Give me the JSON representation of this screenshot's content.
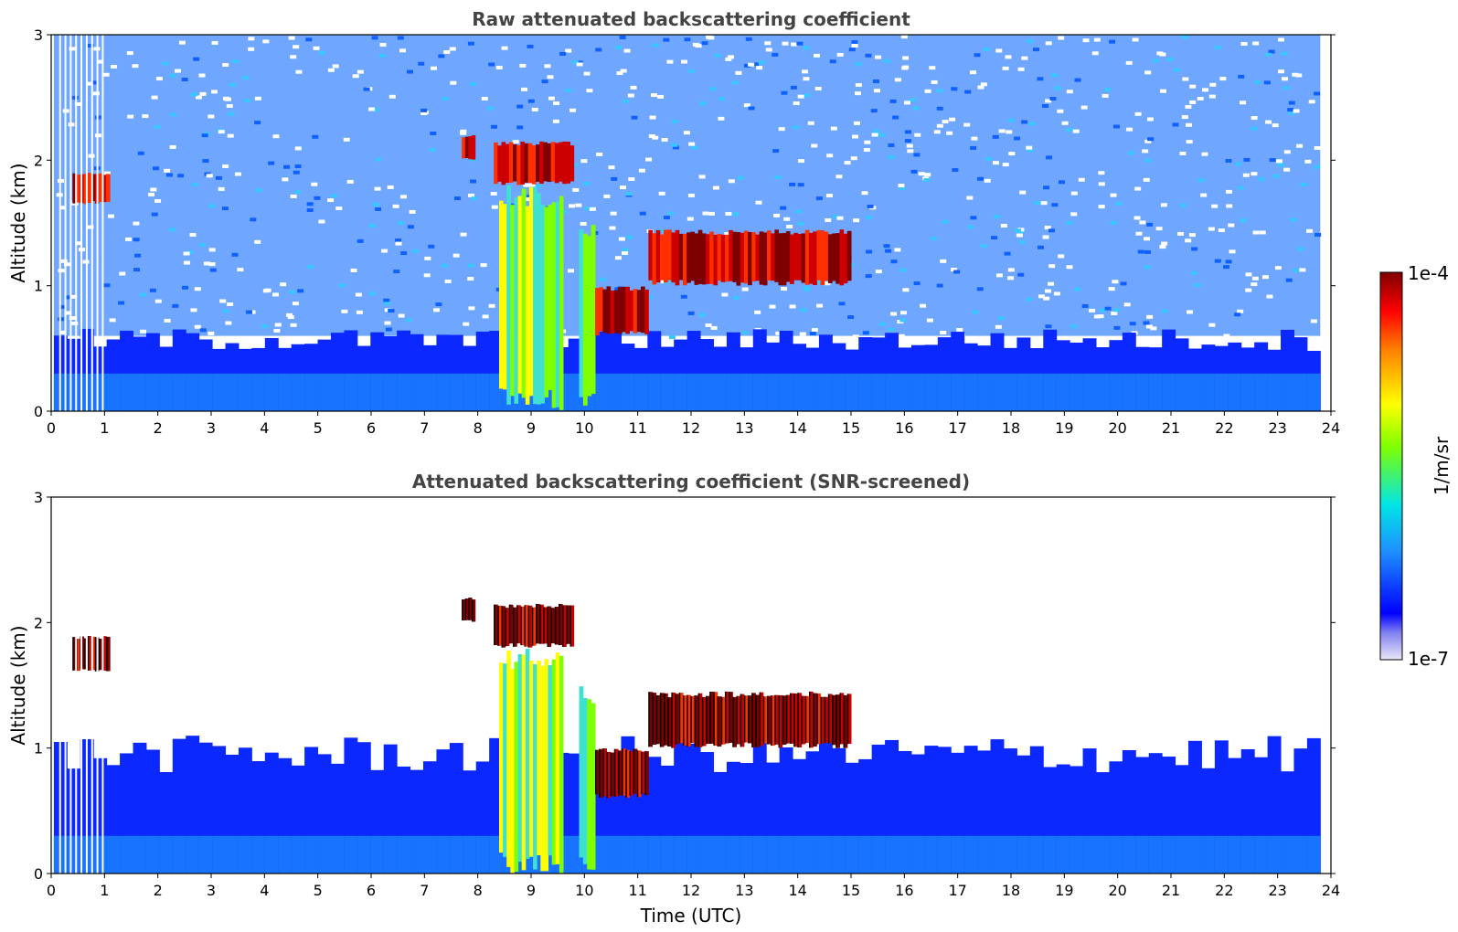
{
  "chart_data": [
    {
      "type": "heatmap",
      "title": "Raw attenuated backscattering coefficient",
      "xlabel": "",
      "ylabel": "Altitude (km)",
      "xlim": [
        0,
        24
      ],
      "ylim": [
        0,
        3
      ],
      "x_ticks": [
        "0",
        "1",
        "2",
        "3",
        "4",
        "5",
        "6",
        "7",
        "8",
        "9",
        "10",
        "11",
        "12",
        "13",
        "14",
        "15",
        "16",
        "17",
        "18",
        "19",
        "20",
        "21",
        "22",
        "23",
        "24"
      ],
      "y_ticks": [
        "0",
        "1",
        "2",
        "3"
      ],
      "data_end_time": 23.8,
      "features": [
        {
          "kind": "boundary_layer",
          "t_start": 0.1,
          "t_end": 23.8,
          "top_km": 0.6
        },
        {
          "kind": "cloud",
          "t_start": 0.4,
          "t_end": 1.1,
          "alt_km": [
            1.65,
            1.9
          ]
        },
        {
          "kind": "cloud",
          "t_start": 7.7,
          "t_end": 7.95,
          "alt_km": [
            2.0,
            2.2
          ]
        },
        {
          "kind": "cloud",
          "t_start": 8.3,
          "t_end": 9.8,
          "alt_km": [
            1.8,
            2.15
          ]
        },
        {
          "kind": "precipitation",
          "t_start": 8.4,
          "t_end": 9.6,
          "alt_km": [
            0,
            1.8
          ]
        },
        {
          "kind": "precipitation",
          "t_start": 9.9,
          "t_end": 10.2,
          "alt_km": [
            0,
            1.5
          ]
        },
        {
          "kind": "cloud",
          "t_start": 10.2,
          "t_end": 11.2,
          "alt_km": [
            0.6,
            1.0
          ]
        },
        {
          "kind": "cloud",
          "t_start": 11.2,
          "t_end": 15.0,
          "alt_km": [
            1.0,
            1.45
          ]
        }
      ]
    },
    {
      "type": "heatmap",
      "title": "Attenuated backscattering coefficient (SNR-screened)",
      "xlabel": "Time (UTC)",
      "ylabel": "Altitude (km)",
      "xlim": [
        0,
        24
      ],
      "ylim": [
        0,
        3
      ],
      "x_ticks": [
        "0",
        "1",
        "2",
        "3",
        "4",
        "5",
        "6",
        "7",
        "8",
        "9",
        "10",
        "11",
        "12",
        "13",
        "14",
        "15",
        "16",
        "17",
        "18",
        "19",
        "20",
        "21",
        "22",
        "23",
        "24"
      ],
      "y_ticks": [
        "0",
        "1",
        "2",
        "3"
      ],
      "data_end_time": 23.8,
      "features": [
        {
          "kind": "boundary_layer",
          "t_start": 0.1,
          "t_end": 23.8,
          "top_km": 1.0
        },
        {
          "kind": "cloud",
          "t_start": 0.4,
          "t_end": 1.1,
          "alt_km": [
            1.6,
            1.9
          ]
        },
        {
          "kind": "cloud",
          "t_start": 7.7,
          "t_end": 7.95,
          "alt_km": [
            2.0,
            2.2
          ]
        },
        {
          "kind": "cloud",
          "t_start": 8.3,
          "t_end": 9.8,
          "alt_km": [
            1.8,
            2.15
          ]
        },
        {
          "kind": "precipitation",
          "t_start": 8.4,
          "t_end": 9.6,
          "alt_km": [
            0,
            1.8
          ]
        },
        {
          "kind": "precipitation",
          "t_start": 9.9,
          "t_end": 10.2,
          "alt_km": [
            0,
            1.5
          ]
        },
        {
          "kind": "cloud",
          "t_start": 10.2,
          "t_end": 11.2,
          "alt_km": [
            0.6,
            1.0
          ]
        },
        {
          "kind": "cloud",
          "t_start": 11.2,
          "t_end": 15.0,
          "alt_km": [
            1.0,
            1.45
          ]
        }
      ]
    }
  ],
  "colorbar": {
    "label": "1/m/sr",
    "max_label": "1e-4",
    "min_label": "1e-7",
    "scale": "log",
    "range": [
      1e-07,
      0.0001
    ],
    "colormap_stops": [
      "#e8e8f8",
      "#0000ff",
      "#1e90ff",
      "#00e5e5",
      "#7fff00",
      "#ffff00",
      "#ff8000",
      "#ff0000",
      "#7f0000"
    ]
  }
}
